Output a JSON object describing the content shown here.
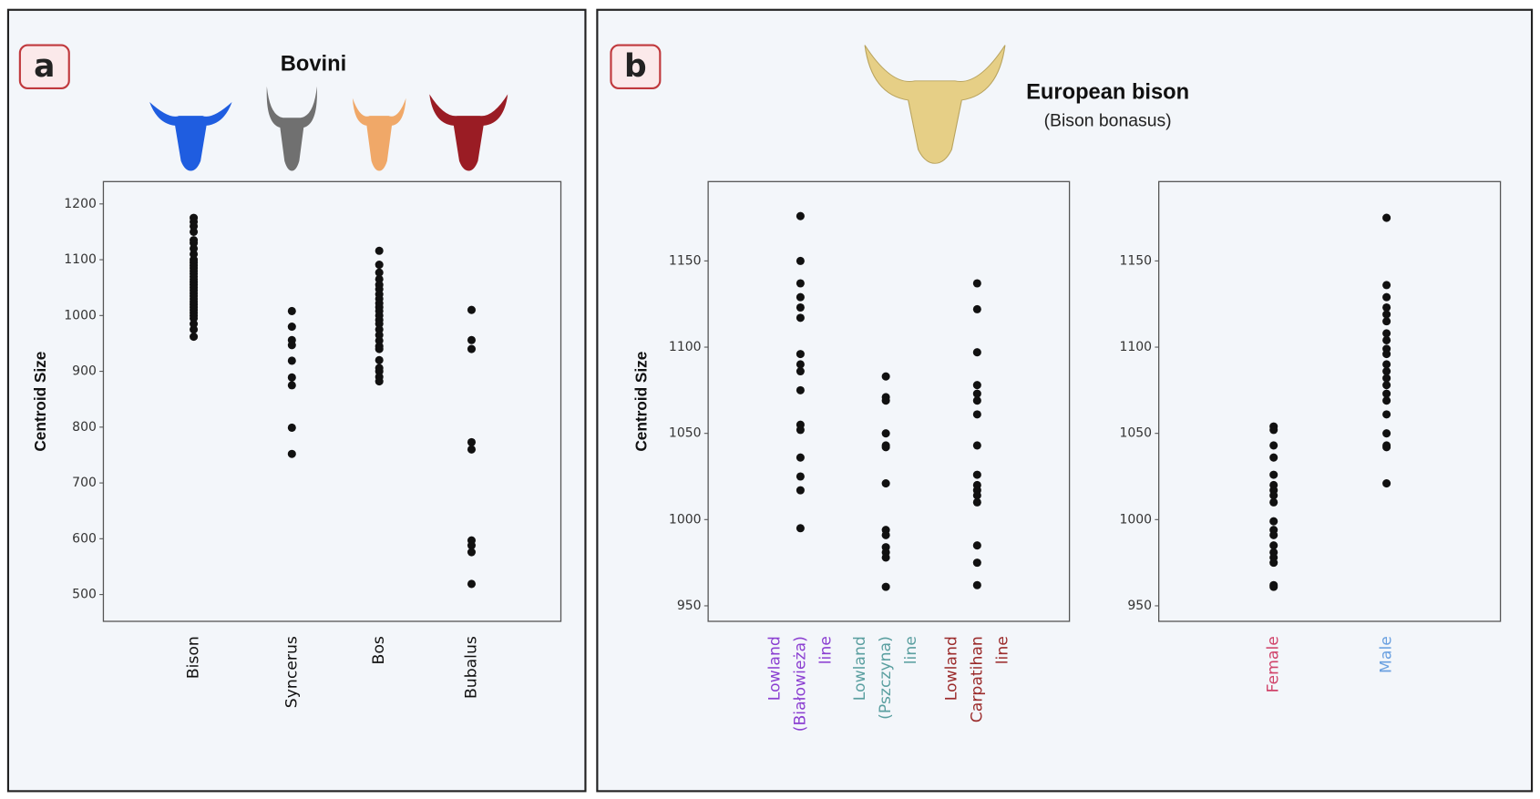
{
  "chart_data": [
    {
      "type": "strip",
      "panel_label": "a",
      "title": "Bovini",
      "ylabel": "Centroid Size",
      "categories": [
        "Bison",
        "Syncerus",
        "Bos",
        "Bubalus"
      ],
      "category_colors": [
        "#111111",
        "#111111",
        "#111111",
        "#111111"
      ],
      "ylim": [
        452,
        1240
      ],
      "yticks": [
        500,
        600,
        700,
        800,
        900,
        1000,
        1100,
        1200
      ],
      "values": [
        [
          962,
          975,
          985,
          995,
          1000,
          1005,
          1010,
          1015,
          1020,
          1025,
          1030,
          1035,
          1040,
          1045,
          1050,
          1055,
          1060,
          1065,
          1070,
          1075,
          1080,
          1085,
          1090,
          1095,
          1100,
          1110,
          1120,
          1130,
          1135,
          1150,
          1160,
          1168,
          1175
        ],
        [
          1008,
          980,
          956,
          947,
          919,
          889,
          875,
          799,
          752
        ],
        [
          1116,
          1091,
          1077,
          1065,
          1055,
          1047,
          1038,
          1030,
          1022,
          1015,
          1008,
          1000,
          992,
          985,
          975,
          965,
          955,
          945,
          940,
          920,
          906,
          900,
          890,
          882
        ],
        [
          1010,
          956,
          940,
          773,
          760,
          597,
          588,
          576,
          519
        ]
      ],
      "point_color": "#111111"
    },
    {
      "type": "strip",
      "panel_label": "b",
      "title": "European bison",
      "subtitle": "(Bison bonasus)",
      "ylabel": "Centroid Size",
      "categories": [
        "Lowland (Białowieża) line",
        "Lowland (Pszczyna) line",
        "Lowland Carpatihan line"
      ],
      "category_colors": [
        "#8b3fd1",
        "#5a9fa0",
        "#9b2b2b"
      ],
      "ylim": [
        941,
        1196
      ],
      "yticks": [
        950,
        1000,
        1050,
        1100,
        1150
      ],
      "values": [
        [
          1176,
          1150,
          1137,
          1129,
          1123,
          1117,
          1096,
          1090,
          1086,
          1075,
          1055,
          1052,
          1036,
          1025,
          1017,
          995
        ],
        [
          1083,
          1071,
          1069,
          1050,
          1043,
          1042,
          1021,
          994,
          991,
          984,
          981,
          978,
          961
        ],
        [
          1137,
          1122,
          1097,
          1078,
          1073,
          1069,
          1061,
          1043,
          1026,
          1020,
          1017,
          1014,
          1010,
          985,
          975,
          962
        ]
      ],
      "point_color": "#111111"
    },
    {
      "type": "strip",
      "categories": [
        "Female",
        "Male"
      ],
      "category_colors": [
        "#d0436a",
        "#6aa0e0"
      ],
      "ylim": [
        941,
        1196
      ],
      "yticks": [
        950,
        1000,
        1050,
        1100,
        1150
      ],
      "values": [
        [
          1054,
          1052,
          1043,
          1036,
          1026,
          1020,
          1017,
          1014,
          1010,
          999,
          994,
          991,
          985,
          981,
          978,
          975,
          962,
          961
        ],
        [
          1175,
          1136,
          1129,
          1123,
          1119,
          1115,
          1108,
          1104,
          1099,
          1096,
          1090,
          1086,
          1082,
          1078,
          1073,
          1069,
          1061,
          1050,
          1043,
          1042,
          1021
        ]
      ],
      "point_color": "#111111"
    }
  ]
}
